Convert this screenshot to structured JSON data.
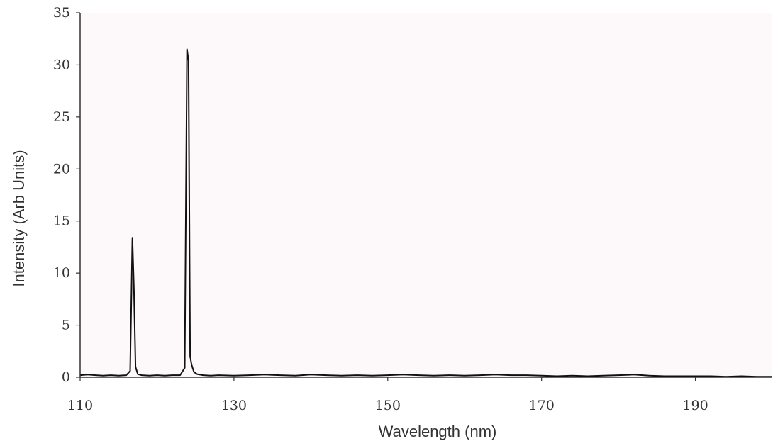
{
  "chart_data": {
    "type": "line",
    "title": "",
    "xlabel": "Wavelength (nm)",
    "ylabel": "Intensity (Arb Units)",
    "xlim": [
      110,
      200
    ],
    "ylim": [
      0,
      35
    ],
    "xticks": [
      110,
      130,
      150,
      170,
      190
    ],
    "yticks": [
      0,
      5,
      10,
      15,
      20,
      25,
      30,
      35
    ],
    "grid": false,
    "legend": "none",
    "colors": {
      "background": "#fdf8fa",
      "line": "#111111",
      "axis": "#333333"
    },
    "series": [
      {
        "x": [
          110,
          111,
          112,
          113,
          114,
          115,
          116,
          116.5,
          116.8,
          117.0,
          117.2,
          117.5,
          118,
          119,
          120,
          121,
          122,
          123,
          123.6,
          123.9,
          124.1,
          124.3,
          124.5,
          124.8,
          125.2,
          126,
          127,
          128,
          130,
          132,
          134,
          136,
          138,
          140,
          142,
          144,
          146,
          148,
          150,
          152,
          154,
          156,
          158,
          160,
          162,
          164,
          166,
          168,
          170,
          172,
          174,
          176,
          178,
          180,
          182,
          184,
          186,
          188,
          190,
          192,
          194,
          196,
          198,
          200
        ],
        "y": [
          0.2,
          0.25,
          0.2,
          0.15,
          0.2,
          0.15,
          0.2,
          0.6,
          13.4,
          8.4,
          1.0,
          0.3,
          0.2,
          0.15,
          0.2,
          0.15,
          0.2,
          0.2,
          0.9,
          31.5,
          30.4,
          2.0,
          1.2,
          0.5,
          0.3,
          0.2,
          0.15,
          0.2,
          0.15,
          0.2,
          0.25,
          0.2,
          0.15,
          0.25,
          0.2,
          0.15,
          0.2,
          0.15,
          0.2,
          0.25,
          0.2,
          0.15,
          0.2,
          0.15,
          0.2,
          0.25,
          0.2,
          0.2,
          0.15,
          0.1,
          0.15,
          0.1,
          0.15,
          0.2,
          0.25,
          0.15,
          0.1,
          0.1,
          0.1,
          0.1,
          0.05,
          0.1,
          0.05,
          0.05
        ]
      }
    ]
  }
}
